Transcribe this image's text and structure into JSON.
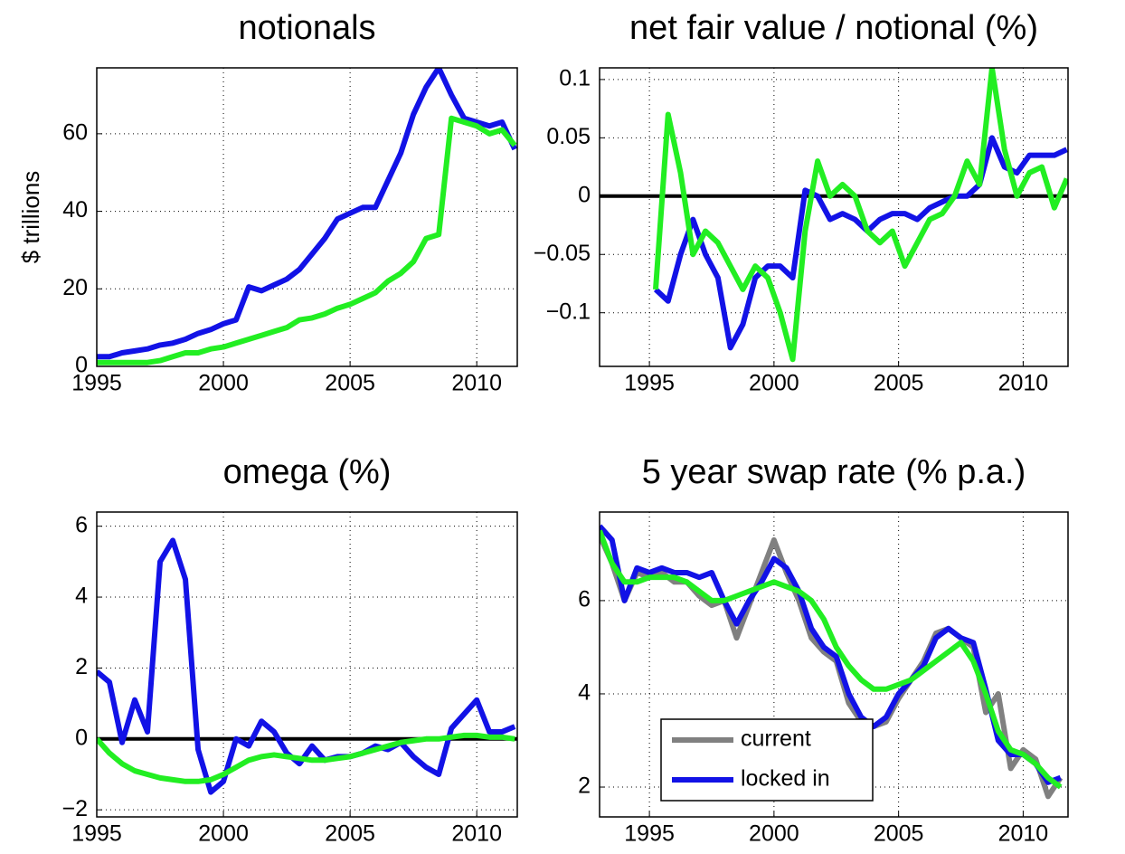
{
  "chart_data": [
    {
      "type": "line",
      "title": "notionals",
      "ylabel": "$ trillions",
      "x": [
        1995,
        1995.5,
        1996,
        1996.5,
        1997,
        1997.5,
        1998,
        1998.5,
        1999,
        1999.5,
        2000,
        2000.5,
        2001,
        2001.5,
        2002,
        2002.5,
        2003,
        2003.5,
        2004,
        2004.5,
        2005,
        2005.5,
        2006,
        2006.5,
        2007,
        2007.5,
        2008,
        2008.5,
        2009,
        2009.5,
        2010,
        2010.5,
        2011,
        2011.5
      ],
      "series": [
        {
          "color": "#1212e6",
          "values": [
            2.5,
            2.5,
            3.5,
            4,
            4.5,
            5.5,
            6,
            7,
            8.5,
            9.5,
            11,
            12,
            20.5,
            19.5,
            21,
            22.5,
            25,
            29,
            33,
            38,
            39.5,
            41,
            41,
            48,
            55,
            65,
            72,
            77,
            70,
            64,
            63,
            62,
            63,
            56
          ]
        },
        {
          "color": "#22ee22",
          "values": [
            1,
            1,
            1,
            1,
            1,
            1.5,
            2.5,
            3.5,
            3.5,
            4.5,
            5,
            6,
            7,
            8,
            9,
            10,
            12,
            12.5,
            13.5,
            15,
            16,
            17.5,
            19,
            22,
            24,
            27,
            33,
            34,
            64,
            63,
            62,
            60,
            61,
            57
          ]
        }
      ],
      "xlim": [
        1995,
        2011.6
      ],
      "ylim": [
        0,
        77
      ],
      "xticks": [
        1995,
        2000,
        2005,
        2010
      ],
      "yticks": [
        0,
        20,
        40,
        60
      ],
      "grid": true
    },
    {
      "type": "line",
      "title": "net fair value / notional (%)",
      "x": [
        1995.25,
        1995.75,
        1996.25,
        1996.75,
        1997.25,
        1997.75,
        1998.25,
        1998.75,
        1999.25,
        1999.75,
        2000.25,
        2000.75,
        2001.25,
        2001.75,
        2002.25,
        2002.75,
        2003.25,
        2003.75,
        2004.25,
        2004.75,
        2005.25,
        2005.75,
        2006.25,
        2006.75,
        2007.25,
        2007.75,
        2008.25,
        2008.75,
        2009.25,
        2009.75,
        2010.25,
        2010.75,
        2011.25,
        2011.75
      ],
      "series": [
        {
          "color": "#1212e6",
          "values": [
            -0.08,
            -0.09,
            -0.05,
            -0.02,
            -0.05,
            -0.07,
            -0.13,
            -0.11,
            -0.07,
            -0.06,
            -0.06,
            -0.07,
            0.005,
            0,
            -0.02,
            -0.015,
            -0.02,
            -0.03,
            -0.02,
            -0.015,
            -0.015,
            -0.02,
            -0.01,
            -0.005,
            0,
            0,
            0.01,
            0.05,
            0.025,
            0.02,
            0.035,
            0.035,
            0.035,
            0.04
          ]
        },
        {
          "color": "#22ee22",
          "values": [
            -0.08,
            0.07,
            0.02,
            -0.05,
            -0.03,
            -0.04,
            -0.06,
            -0.08,
            -0.06,
            -0.07,
            -0.1,
            -0.14,
            -0.03,
            0.03,
            0,
            0.01,
            0,
            -0.03,
            -0.04,
            -0.03,
            -0.06,
            -0.04,
            -0.02,
            -0.015,
            0,
            0.03,
            0.01,
            0.11,
            0.04,
            0,
            0.02,
            0.025,
            -0.01,
            0.015
          ]
        }
      ],
      "xlim": [
        1993,
        2011.8
      ],
      "ylim": [
        -0.146,
        0.11
      ],
      "xticks": [
        1995,
        2000,
        2005,
        2010
      ],
      "yticks": [
        {
          "value": -0.1,
          "label": "−0.1"
        },
        {
          "value": -0.05,
          "label": "−0.05"
        },
        0,
        0.05,
        0.1
      ],
      "grid": true,
      "reference_line": 0
    },
    {
      "type": "line",
      "title": "omega (%)",
      "x": [
        1995,
        1995.5,
        1996,
        1996.5,
        1997,
        1997.5,
        1998,
        1998.5,
        1999,
        1999.5,
        2000,
        2000.5,
        2001,
        2001.5,
        2002,
        2002.5,
        2003,
        2003.5,
        2004,
        2004.5,
        2005,
        2005.5,
        2006,
        2006.5,
        2007,
        2007.5,
        2008,
        2008.5,
        2009,
        2009.5,
        2010,
        2010.5,
        2011,
        2011.5
      ],
      "series": [
        {
          "color": "#1212e6",
          "values": [
            1.9,
            1.6,
            -0.1,
            1.1,
            0.2,
            5,
            5.6,
            4.5,
            -0.3,
            -1.5,
            -1.2,
            0,
            -0.2,
            0.5,
            0.2,
            -0.4,
            -0.7,
            -0.2,
            -0.6,
            -0.5,
            -0.5,
            -0.4,
            -0.2,
            -0.3,
            -0.1,
            -0.5,
            -0.8,
            -1,
            0.3,
            0.7,
            1.1,
            0.2,
            0.2,
            0.35
          ]
        },
        {
          "color": "#22ee22",
          "values": [
            0,
            -0.4,
            -0.7,
            -0.9,
            -1,
            -1.1,
            -1.15,
            -1.2,
            -1.2,
            -1.15,
            -1,
            -0.8,
            -0.6,
            -0.5,
            -0.45,
            -0.5,
            -0.55,
            -0.6,
            -0.6,
            -0.55,
            -0.5,
            -0.4,
            -0.3,
            -0.2,
            -0.1,
            -0.05,
            0,
            0,
            0.05,
            0.1,
            0.1,
            0.05,
            0.05,
            0
          ]
        }
      ],
      "xlim": [
        1995,
        2011.6
      ],
      "ylim": [
        -2.2,
        6.4
      ],
      "xticks": [
        1995,
        2000,
        2005,
        2010
      ],
      "yticks": [
        {
          "value": -2,
          "label": "−2"
        },
        0,
        2,
        4,
        6
      ],
      "grid": true,
      "reference_line": 0
    },
    {
      "type": "line",
      "title": "5 year swap rate (% p.a.)",
      "x": [
        1993,
        1993.5,
        1994,
        1994.5,
        1995,
        1995.5,
        1996,
        1996.5,
        1997,
        1997.5,
        1998,
        1998.5,
        1999,
        1999.5,
        2000,
        2000.5,
        2001,
        2001.5,
        2002,
        2002.5,
        2003,
        2003.5,
        2004,
        2004.5,
        2005,
        2005.5,
        2006,
        2006.5,
        2007,
        2007.5,
        2008,
        2008.5,
        2009,
        2009.5,
        2010,
        2010.5,
        2011,
        2011.5
      ],
      "series": [
        {
          "name": "current",
          "color": "#808080",
          "values": [
            7.4,
            6.8,
            6,
            6.6,
            6.5,
            6.6,
            6.4,
            6.4,
            6.1,
            5.9,
            6,
            5.2,
            5.9,
            6.6,
            7.3,
            6.6,
            6,
            5.2,
            4.9,
            4.7,
            3.8,
            3.4,
            3.3,
            3.4,
            3.9,
            4.3,
            4.7,
            5.3,
            5.4,
            5.2,
            5,
            3.6,
            4,
            2.4,
            2.8,
            2.6,
            1.8,
            2.2
          ]
        },
        {
          "name": "locked in",
          "color": "#1212e6",
          "values": [
            7.6,
            7.3,
            6,
            6.7,
            6.6,
            6.7,
            6.6,
            6.6,
            6.5,
            6.6,
            6,
            5.5,
            6,
            6.4,
            6.9,
            6.7,
            6.2,
            5.4,
            5,
            4.8,
            4,
            3.5,
            3.3,
            3.5,
            4,
            4.3,
            4.6,
            5.2,
            5.4,
            5.2,
            5.1,
            4.1,
            3,
            2.7,
            2.7,
            2.5,
            2.1,
            2.2
          ]
        },
        {
          "color": "#22ee22",
          "values": [
            7.5,
            6.8,
            6.4,
            6.4,
            6.5,
            6.5,
            6.5,
            6.4,
            6.2,
            6,
            6,
            6.1,
            6.2,
            6.3,
            6.4,
            6.3,
            6.2,
            6,
            5.6,
            5,
            4.6,
            4.3,
            4.1,
            4.1,
            4.2,
            4.3,
            4.5,
            4.7,
            4.9,
            5.1,
            4.7,
            4,
            3.2,
            2.8,
            2.7,
            2.5,
            2.2,
            2
          ]
        }
      ],
      "xlim": [
        1993,
        2011.8
      ],
      "ylim": [
        1.36,
        7.9
      ],
      "xticks": [
        1995,
        2000,
        2005,
        2010
      ],
      "yticks": [
        2,
        4,
        6
      ],
      "grid": true,
      "legend": "lower left"
    }
  ]
}
